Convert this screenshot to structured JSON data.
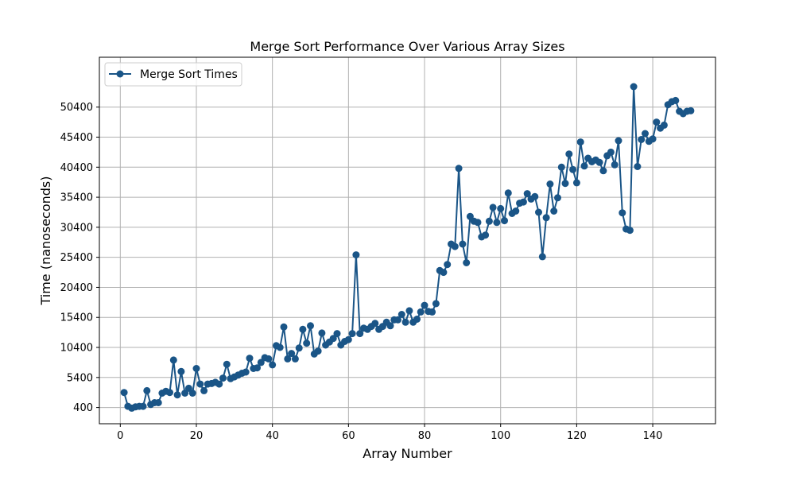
{
  "chart_data": {
    "type": "line",
    "title": "Merge Sort Performance Over Various Array Sizes",
    "xlabel": "Array Number",
    "ylabel": "Time (nanoseconds)",
    "xlim": [
      -5.5,
      156.5
    ],
    "ylim": [
      -2300,
      58700
    ],
    "xticks": [
      0,
      20,
      40,
      60,
      80,
      100,
      120,
      140
    ],
    "yticks": [
      400,
      5400,
      10400,
      15400,
      20400,
      25400,
      30400,
      35400,
      40400,
      45400,
      50400
    ],
    "grid": true,
    "legend": "top-left",
    "color": "#1a5587",
    "series": [
      {
        "name": "Merge Sort Times",
        "x": [
          1,
          2,
          3,
          4,
          5,
          6,
          7,
          8,
          9,
          10,
          11,
          12,
          13,
          14,
          15,
          16,
          17,
          18,
          19,
          20,
          21,
          22,
          23,
          24,
          25,
          26,
          27,
          28,
          29,
          30,
          31,
          32,
          33,
          34,
          35,
          36,
          37,
          38,
          39,
          40,
          41,
          42,
          43,
          44,
          45,
          46,
          47,
          48,
          49,
          50,
          51,
          52,
          53,
          54,
          55,
          56,
          57,
          58,
          59,
          60,
          61,
          62,
          63,
          64,
          65,
          66,
          67,
          68,
          69,
          70,
          71,
          72,
          73,
          74,
          75,
          76,
          77,
          78,
          79,
          80,
          81,
          82,
          83,
          84,
          85,
          86,
          87,
          88,
          89,
          90,
          91,
          92,
          93,
          94,
          95,
          96,
          97,
          98,
          99,
          100,
          101,
          102,
          103,
          104,
          105,
          106,
          107,
          108,
          109,
          110,
          111,
          112,
          113,
          114,
          115,
          116,
          117,
          118,
          119,
          120,
          121,
          122,
          123,
          124,
          125,
          126,
          127,
          128,
          129,
          130,
          131,
          132,
          133,
          134,
          135,
          136,
          137,
          138,
          139,
          140,
          141,
          142,
          143,
          144,
          145,
          146,
          147,
          148,
          149,
          150
        ],
        "values": [
          2900,
          600,
          300,
          500,
          600,
          600,
          3200,
          900,
          1200,
          1200,
          2800,
          3100,
          2900,
          8300,
          2500,
          6400,
          2800,
          3600,
          2800,
          6900,
          4300,
          3200,
          4300,
          4400,
          4600,
          4300,
          5300,
          7600,
          5200,
          5500,
          5800,
          6100,
          6300,
          8600,
          6900,
          7000,
          7900,
          8700,
          8500,
          7500,
          10700,
          10400,
          13800,
          8500,
          9400,
          8500,
          10300,
          13400,
          11100,
          14000,
          9300,
          9800,
          12800,
          10800,
          11300,
          11900,
          12700,
          10800,
          11400,
          11700,
          12700,
          25800,
          12700,
          13600,
          13400,
          13900,
          14400,
          13400,
          13900,
          14600,
          14000,
          15000,
          15000,
          15900,
          14600,
          16500,
          14600,
          15100,
          16300,
          17400,
          16400,
          16300,
          17700,
          23200,
          22900,
          24200,
          27600,
          27200,
          40200,
          27600,
          24500,
          32200,
          31400,
          31200,
          28800,
          29100,
          31400,
          33700,
          31200,
          33500,
          31500,
          36100,
          32700,
          33100,
          34400,
          34600,
          36000,
          35100,
          35500,
          32900,
          25500,
          32000,
          37600,
          33100,
          35300,
          40400,
          37700,
          42600,
          40000,
          37800,
          44600,
          40600,
          41900,
          41300,
          41600,
          41200,
          39800,
          42300,
          42900,
          40800,
          44800,
          32800,
          30100,
          29900,
          53800,
          40500,
          45000,
          46000,
          44700,
          45100,
          47900,
          46900,
          47400,
          50800,
          51300,
          51500,
          49700,
          49300,
          49700,
          49800
        ]
      }
    ]
  }
}
